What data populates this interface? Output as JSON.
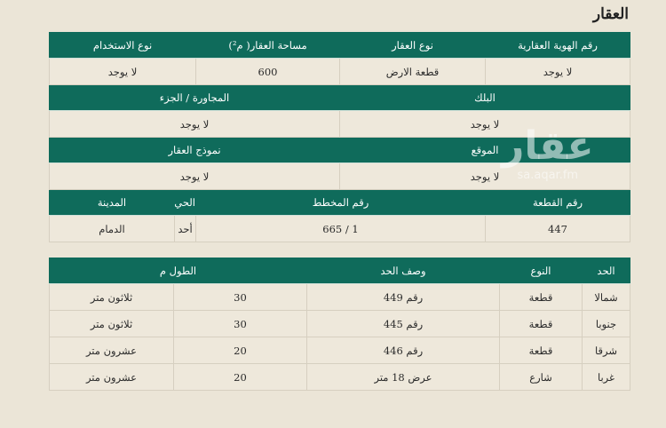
{
  "title": "العقار",
  "property": {
    "headers1": [
      "رقم الهوية العقارية",
      "نوع العقار",
      "مساحة العقار( م²)",
      "نوع الاستخدام"
    ],
    "values1": [
      "لا يوجد",
      "قطعة الارض",
      "600",
      "لا يوجد"
    ],
    "headers2": [
      "البلك",
      "المجاورة / الجزء"
    ],
    "values2": [
      "لا يوجد",
      "لا يوجد"
    ],
    "headers3": [
      "الموقع",
      "نموذج العقار"
    ],
    "values3": [
      "لا يوجد",
      "لا يوجد"
    ],
    "headers4": [
      "رقم القطعة",
      "رقم المخطط",
      "الحي",
      "المدينة"
    ],
    "values4": [
      "447",
      "1 / 665",
      "أحد",
      "الدمام"
    ]
  },
  "boundaries": {
    "headers": [
      "الحد",
      "النوع",
      "وصف الحد",
      "الطول م"
    ],
    "rows": [
      [
        "شمالا",
        "قطعة",
        "رقم 449",
        "30",
        "ثلاثون متر"
      ],
      [
        "جنوبا",
        "قطعة",
        "رقم 445",
        "30",
        "ثلاثون متر"
      ],
      [
        "شرقا",
        "قطعة",
        "رقم 446",
        "20",
        "عشرون متر"
      ],
      [
        "غربا",
        "شارع",
        "عرض 18 متر",
        "20",
        "عشرون متر"
      ]
    ]
  },
  "watermark": {
    "logo": "عقار",
    "site": "sa.aqar.fm"
  }
}
